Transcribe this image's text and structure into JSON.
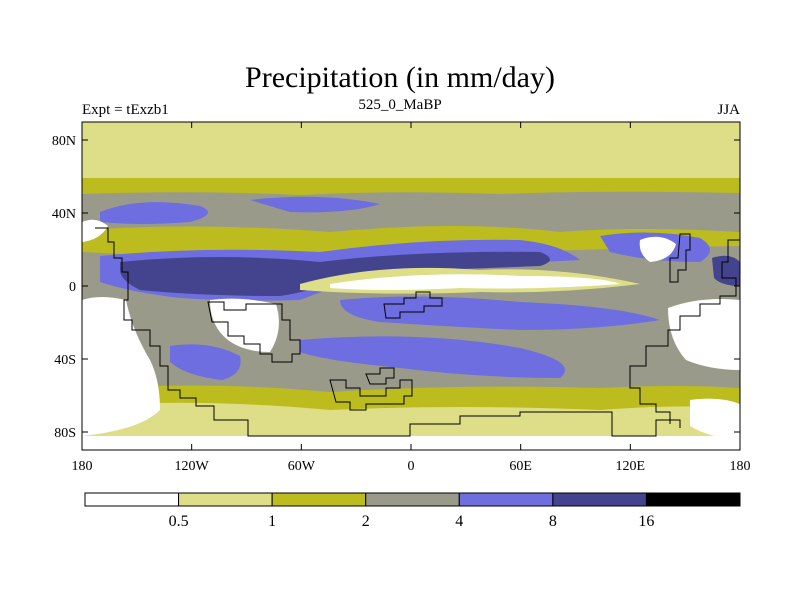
{
  "title": "Precipitation (in mm/day)",
  "left_label": "Expt = tExzb1",
  "center_label": "525_0_MaBP",
  "right_label": "JJA",
  "lat_ticks": [
    "80N",
    "40N",
    "0",
    "40S",
    "80S"
  ],
  "lon_ticks": [
    "180",
    "120W",
    "60W",
    "0",
    "60E",
    "120E",
    "180"
  ],
  "colorbar": {
    "levels": [
      "0.5",
      "1",
      "2",
      "4",
      "8",
      "16"
    ],
    "colors": [
      "#ffffff",
      "#dede88",
      "#bcbc1e",
      "#9a9a8a",
      "#6e6ee0",
      "#44448e",
      "#000000"
    ]
  },
  "colors": {
    "outline": "#000000",
    "coast": "#000000"
  }
}
